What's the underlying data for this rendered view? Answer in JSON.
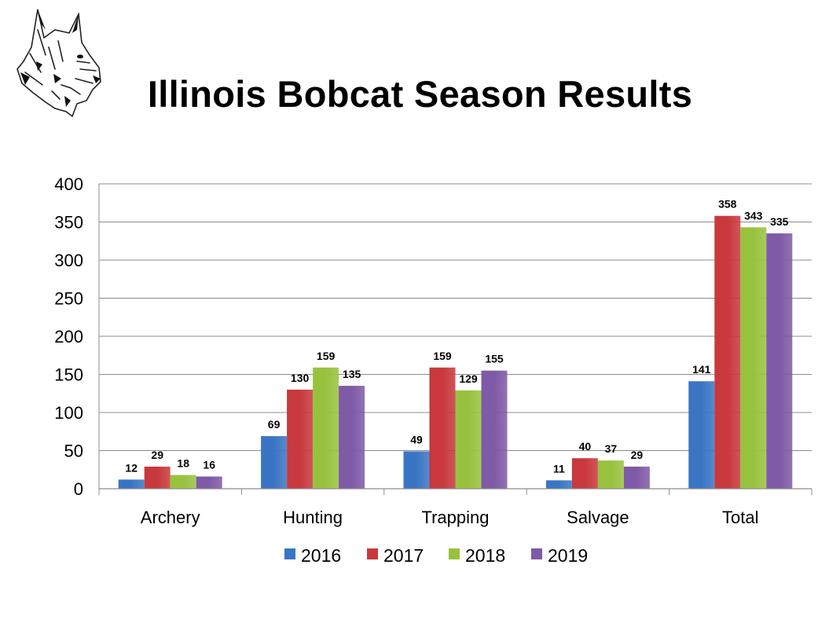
{
  "title": "Illinois Bobcat Season Results",
  "chart_data": {
    "type": "bar",
    "title": "Illinois Bobcat Season Results",
    "xlabel": "",
    "ylabel": "",
    "categories": [
      "Archery",
      "Hunting",
      "Trapping",
      "Salvage",
      "Total"
    ],
    "series": [
      {
        "name": "2016",
        "color": "#3a75c4",
        "values": [
          12,
          69,
          49,
          11,
          141
        ]
      },
      {
        "name": "2017",
        "color": "#c8383c",
        "values": [
          29,
          130,
          159,
          40,
          358
        ]
      },
      {
        "name": "2018",
        "color": "#98c23e",
        "values": [
          18,
          159,
          129,
          37,
          343
        ]
      },
      {
        "name": "2019",
        "color": "#7f5aa6",
        "values": [
          16,
          135,
          155,
          29,
          335
        ]
      }
    ],
    "ylim": [
      0,
      400
    ],
    "yticks": [
      0,
      50,
      100,
      150,
      200,
      250,
      300,
      350,
      400
    ],
    "grid": true,
    "legend_position": "bottom"
  }
}
